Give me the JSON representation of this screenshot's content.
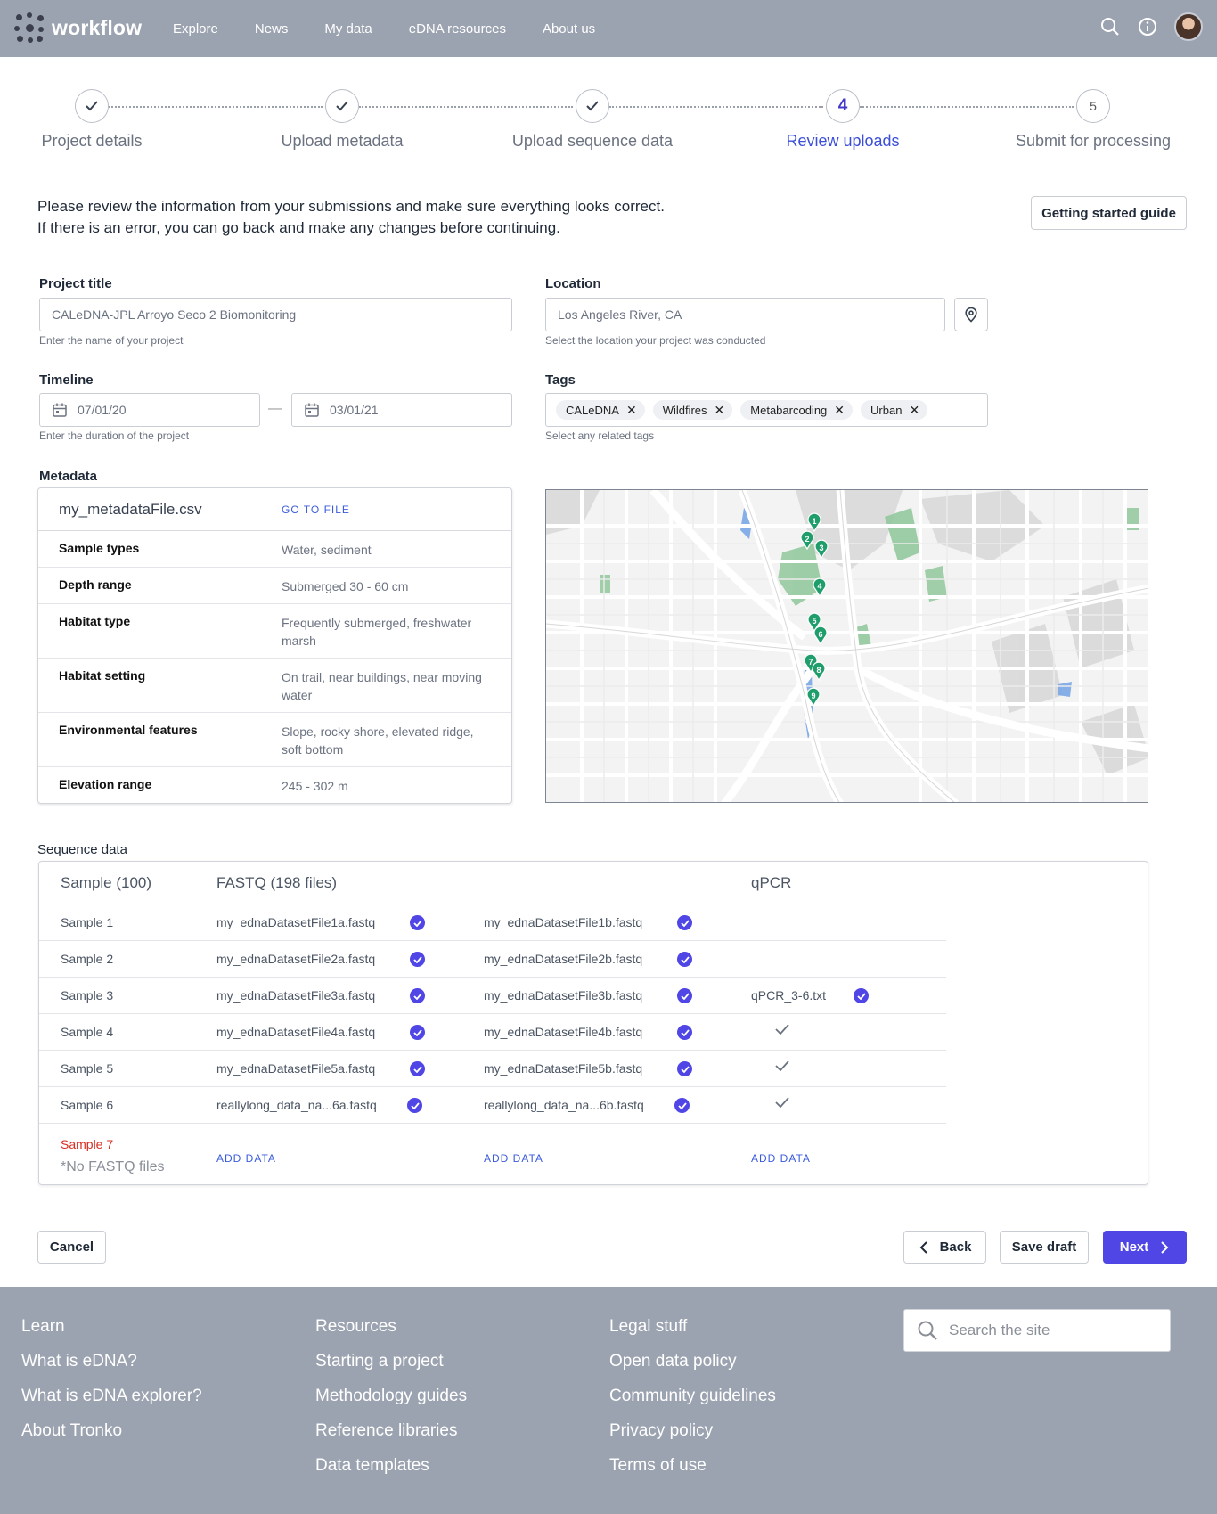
{
  "nav": {
    "brand": "workflow",
    "links": [
      "Explore",
      "News",
      "My data",
      "eDNA resources",
      "About us"
    ]
  },
  "steps": [
    {
      "label": "Project details",
      "status": "done",
      "marker": ""
    },
    {
      "label": "Upload metadata",
      "status": "done",
      "marker": ""
    },
    {
      "label": "Upload sequence data",
      "status": "done",
      "marker": ""
    },
    {
      "label": "Review uploads",
      "status": "active",
      "marker": "4"
    },
    {
      "label": "Submit for processing",
      "status": "pending",
      "marker": "5"
    }
  ],
  "intro": {
    "line1": "Please review the information from your submissions and make sure everything looks correct.",
    "line2": "If there is an error, you can go back and make any changes before continuing.",
    "guide_button": "Getting started guide"
  },
  "form": {
    "project_title": {
      "label": "Project title",
      "value": "CALeDNA-JPL Arroyo Seco 2 Biomonitoring",
      "helper": "Enter the name of your project"
    },
    "location": {
      "label": "Location",
      "value": "Los Angeles River, CA",
      "helper": "Select the location your project was conducted"
    },
    "timeline": {
      "label": "Timeline",
      "start": "07/01/20",
      "end": "03/01/21",
      "separator": "—",
      "helper": "Enter the duration of the project"
    },
    "tags": {
      "label": "Tags",
      "items": [
        "CALeDNA",
        "Wildfires",
        "Metabarcoding",
        "Urban"
      ],
      "helper": "Select any related tags"
    }
  },
  "metadata": {
    "label": "Metadata",
    "file": "my_metadataFile.csv",
    "link": "GO TO FILE",
    "rows": [
      {
        "key": "Sample types",
        "value": "Water, sediment"
      },
      {
        "key": "Depth range",
        "value": "Submerged 30 - 60 cm"
      },
      {
        "key": "Habitat type",
        "value": "Frequently submerged, freshwater marsh"
      },
      {
        "key": "Habitat setting",
        "value": "On trail, near buildings, near moving water"
      },
      {
        "key": "Environmental features",
        "value": "Slope, rocky shore, elevated ridge, soft bottom"
      },
      {
        "key": "Elevation range",
        "value": "245 - 302 m"
      }
    ]
  },
  "map": {
    "markers": [
      "1",
      "2",
      "3",
      "4",
      "5",
      "6",
      "7",
      "8",
      "9"
    ],
    "marker_color": "#1f9d6b"
  },
  "sequence": {
    "label": "Sequence data",
    "headers": {
      "sample": "Sample (100)",
      "fastq": "FASTQ (198 files)",
      "qpcr": "qPCR"
    },
    "rows": [
      {
        "sample": "Sample 1",
        "fa": "my_ednaDatasetFile1a.fastq",
        "fb": "my_ednaDatasetFile1b.fastq",
        "qpcr": "",
        "qpcr_state": "none"
      },
      {
        "sample": "Sample 2",
        "fa": "my_ednaDatasetFile2a.fastq",
        "fb": "my_ednaDatasetFile2b.fastq",
        "qpcr": "",
        "qpcr_state": "none"
      },
      {
        "sample": "Sample 3",
        "fa": "my_ednaDatasetFile3a.fastq",
        "fb": "my_ednaDatasetFile3b.fastq",
        "qpcr": "qPCR_3-6.txt",
        "qpcr_state": "file"
      },
      {
        "sample": "Sample 4",
        "fa": "my_ednaDatasetFile4a.fastq",
        "fb": "my_ednaDatasetFile4b.fastq",
        "qpcr": "",
        "qpcr_state": "tick"
      },
      {
        "sample": "Sample 5",
        "fa": "my_ednaDatasetFile5a.fastq",
        "fb": "my_ednaDatasetFile5b.fastq",
        "qpcr": "",
        "qpcr_state": "tick"
      },
      {
        "sample": "Sample 6",
        "fa": "reallylong_data_na...6a.fastq",
        "fb": "reallylong_data_na...6b.fastq",
        "qpcr": "",
        "qpcr_state": "tick"
      }
    ],
    "missing": {
      "sample": "Sample 7",
      "note": "*No FASTQ files",
      "add": "ADD DATA"
    }
  },
  "actions": {
    "cancel": "Cancel",
    "back": "Back",
    "save": "Save draft",
    "next": "Next"
  },
  "footer": {
    "columns": [
      {
        "head": "Learn",
        "links": [
          "What is eDNA?",
          "What is eDNA explorer?",
          "About Tronko"
        ]
      },
      {
        "head": "Resources",
        "links": [
          "Starting a project",
          "Methodology guides",
          "Reference libraries",
          "Data templates"
        ]
      },
      {
        "head": "Legal stuff",
        "links": [
          "Open data policy",
          "Community guidelines",
          "Privacy policy",
          "Terms of use"
        ]
      }
    ],
    "search_placeholder": "Search the site"
  },
  "colors": {
    "nav": "#9ca3b0",
    "accent": "#4f46e5",
    "link": "#3b5bdb",
    "error": "#d92d20"
  }
}
